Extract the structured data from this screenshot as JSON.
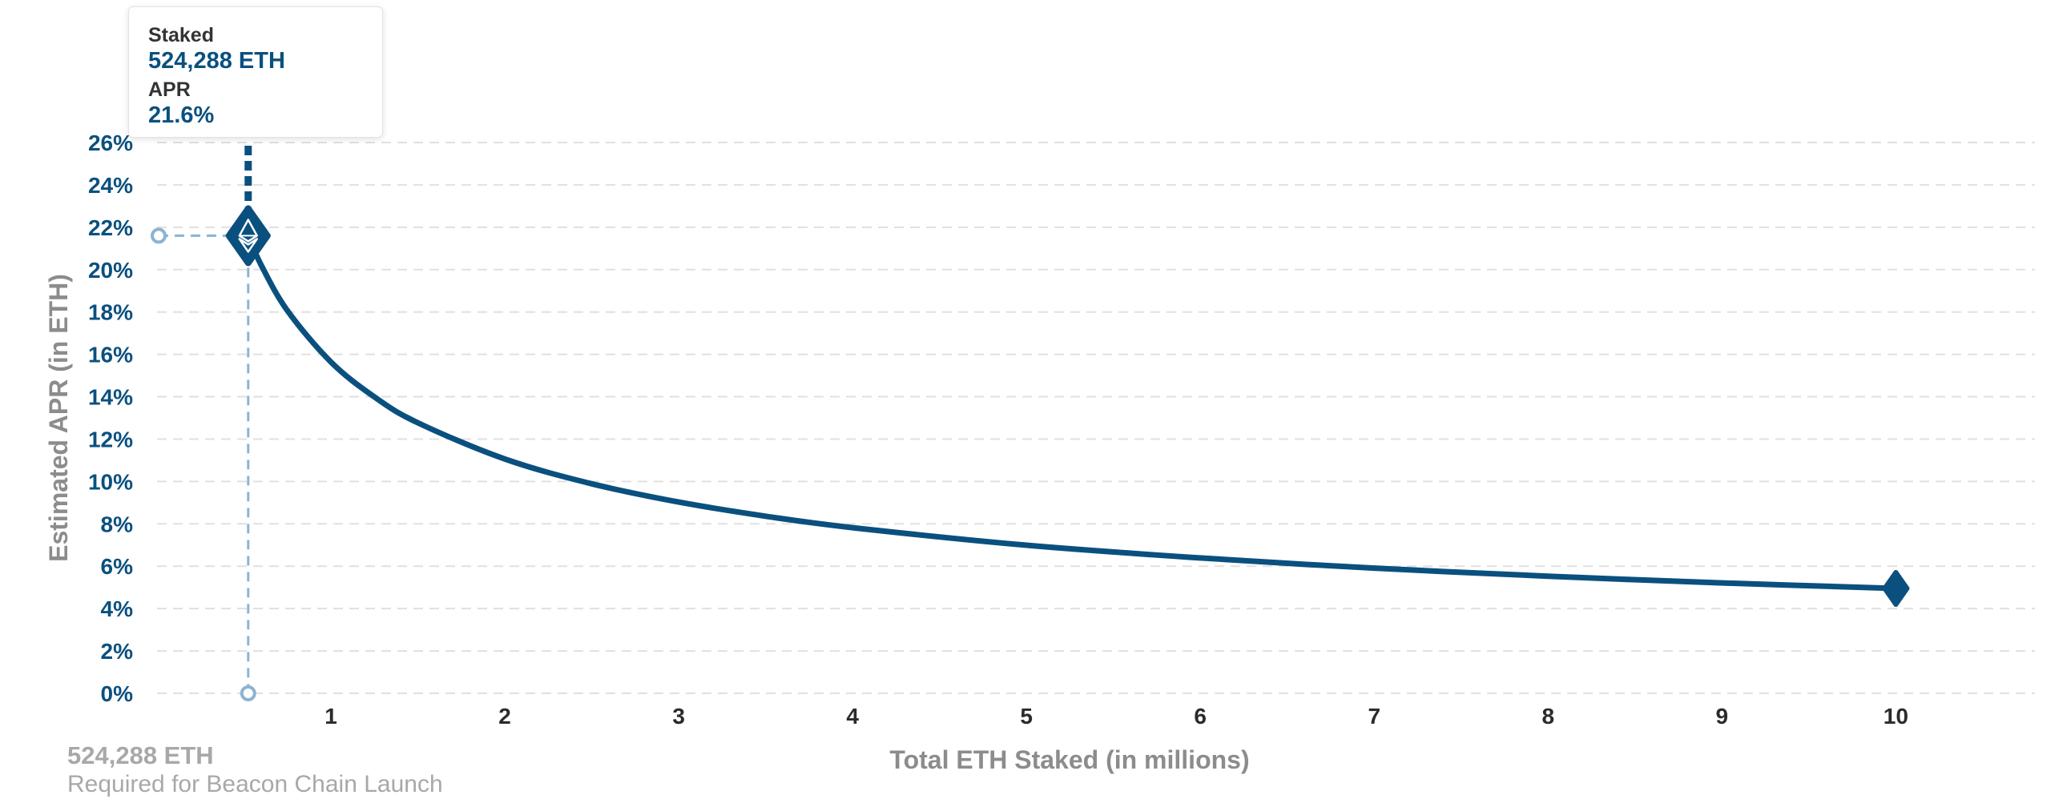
{
  "chart_data": {
    "type": "line",
    "xlabel": "Total ETH Staked  (in millions)",
    "ylabel": "Estimated APR (in ETH)",
    "xlim": [
      0,
      10.8
    ],
    "ylim": [
      0,
      26
    ],
    "x_ticks": [
      1,
      2,
      3,
      4,
      5,
      6,
      7,
      8,
      9,
      10
    ],
    "y_ticks": [
      0,
      2,
      4,
      6,
      8,
      10,
      12,
      14,
      16,
      18,
      20,
      22,
      24,
      26
    ],
    "y_tick_labels": [
      "0%",
      "2%",
      "4%",
      "6%",
      "8%",
      "10%",
      "12%",
      "14%",
      "16%",
      "18%",
      "20%",
      "22%",
      "24%",
      "26%"
    ],
    "grid": true,
    "series": [
      {
        "x": [
          0.524288,
          0.6,
          0.75,
          1.0,
          1.25,
          1.5,
          2.0,
          2.5,
          3.0,
          3.5,
          4.0,
          5.0,
          6.0,
          7.0,
          8.0,
          9.0,
          10.0
        ],
        "y": [
          21.6,
          20.2,
          18.06,
          15.64,
          13.99,
          12.77,
          11.06,
          9.89,
          9.03,
          8.36,
          7.82,
          6.99,
          6.39,
          5.91,
          5.53,
          5.21,
          4.95
        ],
        "color": "#0a507f"
      }
    ],
    "highlight": {
      "x": 0.524288,
      "y": 21.6
    },
    "end_marker": {
      "x": 10.0,
      "y": 4.95
    }
  },
  "tooltip": {
    "staked_label": "Staked",
    "staked_value": "524,288 ETH",
    "apr_label": "APR",
    "apr_value": "21.6%"
  },
  "footnote": {
    "value": "524,288 ETH",
    "caption": "Required for Beacon Chain Launch"
  },
  "colors": {
    "line": "#0a507f",
    "guide": "#8fb3cf",
    "grid": "#e0e0e0",
    "axis_title": "#8c8c8c"
  },
  "icons": {
    "highlight_marker": "ethereum-diamond-icon",
    "end_marker": "diamond-icon"
  }
}
